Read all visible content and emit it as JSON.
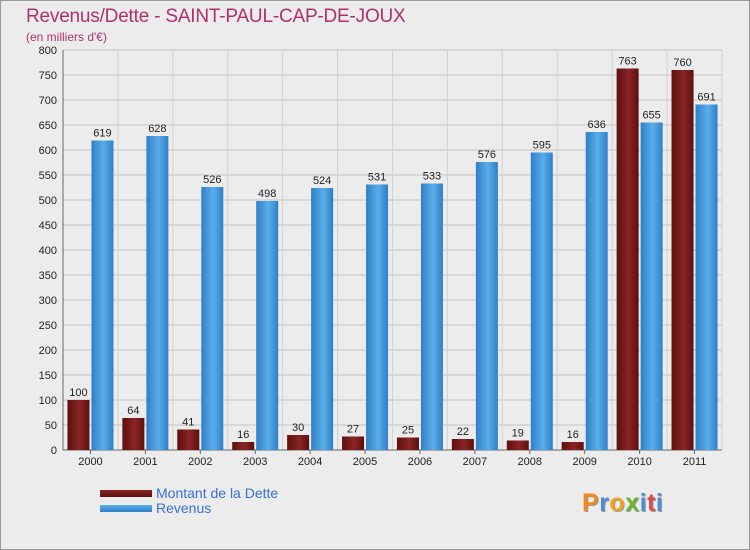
{
  "chart_data": {
    "type": "bar",
    "title": "Revenus/Dette - SAINT-PAUL-CAP-DE-JOUX",
    "subtitle": "(en milliers d'€)",
    "categories": [
      "2000",
      "2001",
      "2002",
      "2003",
      "2004",
      "2005",
      "2006",
      "2007",
      "2008",
      "2009",
      "2010",
      "2011"
    ],
    "series": [
      {
        "name": "Montant de la Dette",
        "color": "#7a1a1a",
        "values": [
          100,
          64,
          41,
          16,
          30,
          27,
          25,
          22,
          19,
          16,
          763,
          760
        ]
      },
      {
        "name": "Revenus",
        "color": "#3d93d8",
        "values": [
          619,
          628,
          526,
          498,
          524,
          531,
          533,
          576,
          595,
          636,
          655,
          691
        ]
      }
    ],
    "ylim": [
      0,
      800
    ],
    "yticks": [
      0,
      50,
      100,
      150,
      200,
      250,
      300,
      350,
      400,
      450,
      500,
      550,
      600,
      650,
      700,
      750,
      800
    ],
    "grid": true,
    "legend": "bottom-left"
  },
  "logo": {
    "letters": [
      "P",
      "r",
      "o",
      "x",
      "i",
      "t",
      "i"
    ],
    "colors": [
      "#f08a1c",
      "#4a90d9",
      "#f0a21c",
      "#6ab42a",
      "#4a90d9",
      "#e04848",
      "#4a90d9"
    ]
  }
}
